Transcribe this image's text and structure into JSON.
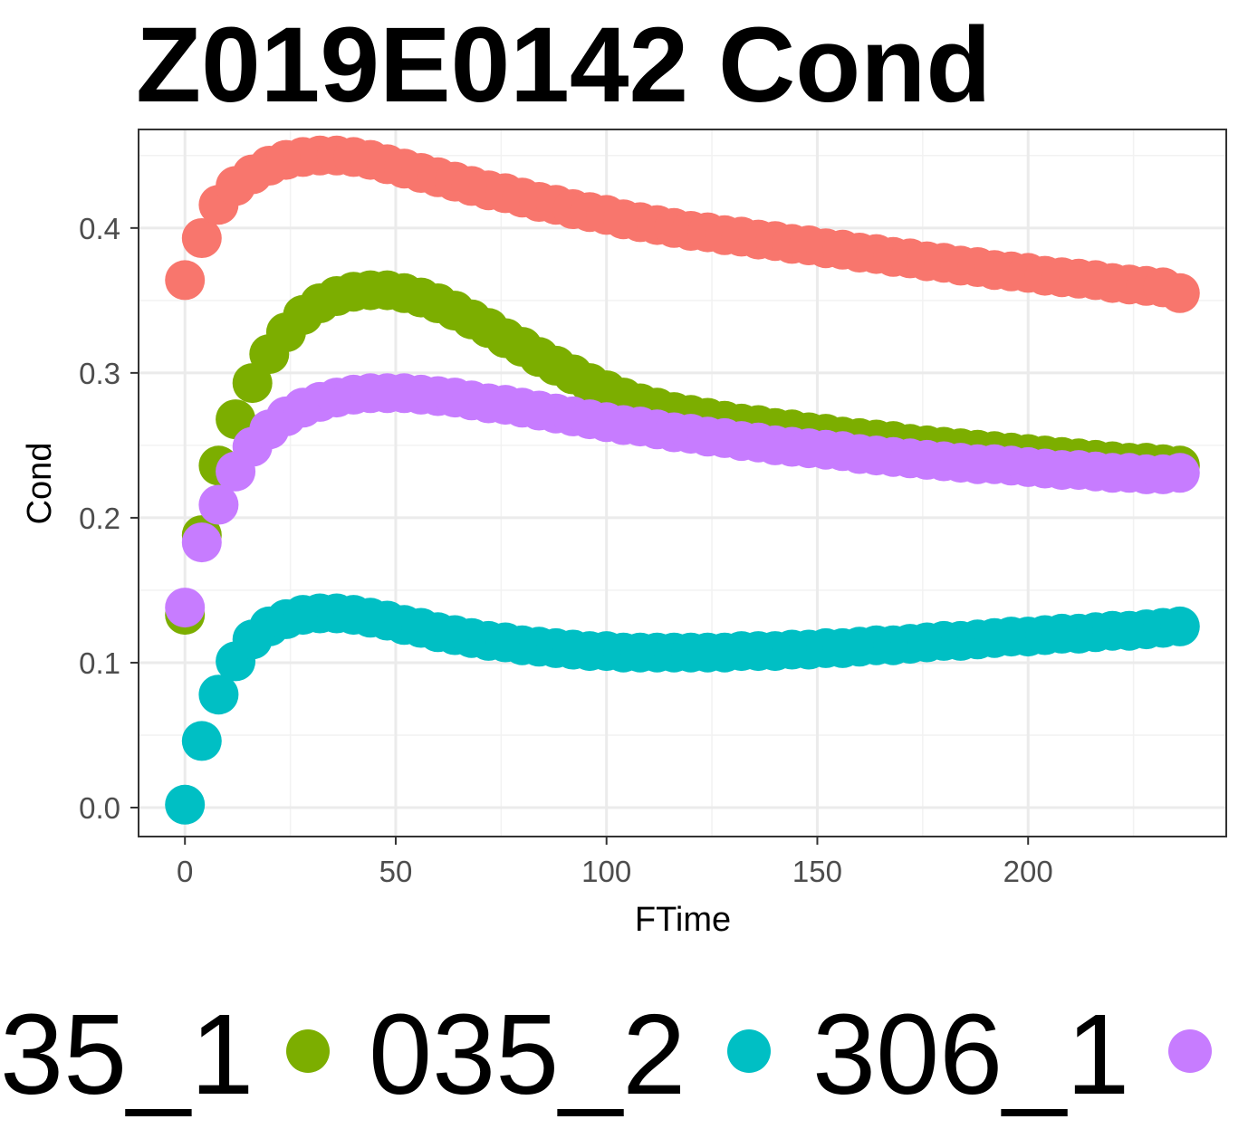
{
  "chart_data": {
    "type": "scatter",
    "title": "Z019E0142 Cond",
    "xlabel": "FTime",
    "ylabel": "Cond",
    "xlim": [
      -11,
      247
    ],
    "ylim": [
      -0.02,
      0.468
    ],
    "x_ticks": [
      0,
      50,
      100,
      150,
      200
    ],
    "x_tick_labels": [
      "0",
      "50",
      "100",
      "150",
      "200"
    ],
    "y_ticks": [
      0.0,
      0.1,
      0.2,
      0.3,
      0.4
    ],
    "y_tick_labels": [
      "0.0",
      "0.1",
      "0.2",
      "0.3",
      "0.4"
    ],
    "grid": true,
    "legend_position": "bottom",
    "legend_visible_labels": [
      "35_1",
      "035_2",
      "306_1"
    ],
    "series": [
      {
        "color": "#F8766D",
        "x": [
          0,
          4,
          8,
          12,
          16,
          20,
          24,
          28,
          32,
          36,
          40,
          44,
          48,
          52,
          56,
          60,
          64,
          68,
          72,
          76,
          80,
          84,
          88,
          92,
          96,
          100,
          104,
          108,
          112,
          116,
          120,
          124,
          128,
          132,
          136,
          140,
          144,
          148,
          152,
          156,
          160,
          164,
          168,
          172,
          176,
          180,
          184,
          188,
          192,
          196,
          200,
          204,
          208,
          212,
          216,
          220,
          224,
          228,
          232,
          236
        ],
        "values": [
          0.364,
          0.393,
          0.416,
          0.429,
          0.437,
          0.443,
          0.447,
          0.449,
          0.45,
          0.45,
          0.449,
          0.447,
          0.444,
          0.441,
          0.438,
          0.435,
          0.432,
          0.429,
          0.426,
          0.424,
          0.421,
          0.418,
          0.416,
          0.413,
          0.411,
          0.409,
          0.406,
          0.404,
          0.402,
          0.4,
          0.398,
          0.397,
          0.395,
          0.394,
          0.392,
          0.391,
          0.389,
          0.388,
          0.386,
          0.385,
          0.383,
          0.382,
          0.38,
          0.379,
          0.377,
          0.376,
          0.374,
          0.373,
          0.371,
          0.37,
          0.369,
          0.367,
          0.366,
          0.365,
          0.364,
          0.362,
          0.361,
          0.36,
          0.359,
          0.355
        ]
      },
      {
        "color": "#7CAE00",
        "x": [
          0,
          4,
          8,
          12,
          16,
          20,
          24,
          28,
          32,
          36,
          40,
          44,
          48,
          52,
          56,
          60,
          64,
          68,
          72,
          76,
          80,
          84,
          88,
          92,
          96,
          100,
          104,
          108,
          112,
          116,
          120,
          124,
          128,
          132,
          136,
          140,
          144,
          148,
          152,
          156,
          160,
          164,
          168,
          172,
          176,
          180,
          184,
          188,
          192,
          196,
          200,
          204,
          208,
          212,
          216,
          220,
          224,
          228,
          232,
          236
        ],
        "values": [
          0.133,
          0.188,
          0.236,
          0.268,
          0.293,
          0.313,
          0.328,
          0.34,
          0.348,
          0.353,
          0.356,
          0.357,
          0.357,
          0.355,
          0.352,
          0.348,
          0.343,
          0.337,
          0.331,
          0.324,
          0.318,
          0.311,
          0.305,
          0.299,
          0.293,
          0.288,
          0.283,
          0.279,
          0.276,
          0.273,
          0.271,
          0.269,
          0.267,
          0.265,
          0.264,
          0.262,
          0.261,
          0.259,
          0.258,
          0.256,
          0.255,
          0.254,
          0.253,
          0.251,
          0.25,
          0.249,
          0.248,
          0.247,
          0.246,
          0.245,
          0.244,
          0.243,
          0.242,
          0.241,
          0.24,
          0.239,
          0.238,
          0.238,
          0.237,
          0.236
        ]
      },
      {
        "color": "#00BFC4",
        "x": [
          0,
          4,
          8,
          12,
          16,
          20,
          24,
          28,
          32,
          36,
          40,
          44,
          48,
          52,
          56,
          60,
          64,
          68,
          72,
          76,
          80,
          84,
          88,
          92,
          96,
          100,
          104,
          108,
          112,
          116,
          120,
          124,
          128,
          132,
          136,
          140,
          144,
          148,
          152,
          156,
          160,
          164,
          168,
          172,
          176,
          180,
          184,
          188,
          192,
          196,
          200,
          204,
          208,
          212,
          216,
          220,
          224,
          228,
          232,
          236
        ],
        "values": [
          0.002,
          0.046,
          0.078,
          0.101,
          0.116,
          0.125,
          0.13,
          0.133,
          0.134,
          0.134,
          0.133,
          0.131,
          0.129,
          0.126,
          0.124,
          0.121,
          0.119,
          0.117,
          0.115,
          0.114,
          0.112,
          0.111,
          0.11,
          0.109,
          0.108,
          0.108,
          0.107,
          0.107,
          0.107,
          0.107,
          0.107,
          0.107,
          0.107,
          0.108,
          0.108,
          0.108,
          0.109,
          0.109,
          0.11,
          0.11,
          0.111,
          0.112,
          0.112,
          0.113,
          0.114,
          0.115,
          0.115,
          0.116,
          0.117,
          0.118,
          0.118,
          0.119,
          0.12,
          0.12,
          0.121,
          0.122,
          0.122,
          0.123,
          0.124,
          0.125
        ]
      },
      {
        "color": "#C77CFF",
        "x": [
          0,
          4,
          8,
          12,
          16,
          20,
          24,
          28,
          32,
          36,
          40,
          44,
          48,
          52,
          56,
          60,
          64,
          68,
          72,
          76,
          80,
          84,
          88,
          92,
          96,
          100,
          104,
          108,
          112,
          116,
          120,
          124,
          128,
          132,
          136,
          140,
          144,
          148,
          152,
          156,
          160,
          164,
          168,
          172,
          176,
          180,
          184,
          188,
          192,
          196,
          200,
          204,
          208,
          212,
          216,
          220,
          224,
          228,
          232,
          236
        ],
        "values": [
          0.138,
          0.183,
          0.209,
          0.232,
          0.249,
          0.261,
          0.27,
          0.276,
          0.28,
          0.283,
          0.285,
          0.286,
          0.286,
          0.286,
          0.285,
          0.284,
          0.283,
          0.281,
          0.279,
          0.278,
          0.276,
          0.274,
          0.272,
          0.27,
          0.268,
          0.266,
          0.264,
          0.263,
          0.261,
          0.259,
          0.258,
          0.256,
          0.255,
          0.253,
          0.252,
          0.25,
          0.249,
          0.248,
          0.247,
          0.246,
          0.244,
          0.243,
          0.242,
          0.241,
          0.24,
          0.239,
          0.238,
          0.237,
          0.237,
          0.236,
          0.235,
          0.234,
          0.233,
          0.233,
          0.232,
          0.231,
          0.231,
          0.23,
          0.23,
          0.231
        ]
      }
    ]
  }
}
